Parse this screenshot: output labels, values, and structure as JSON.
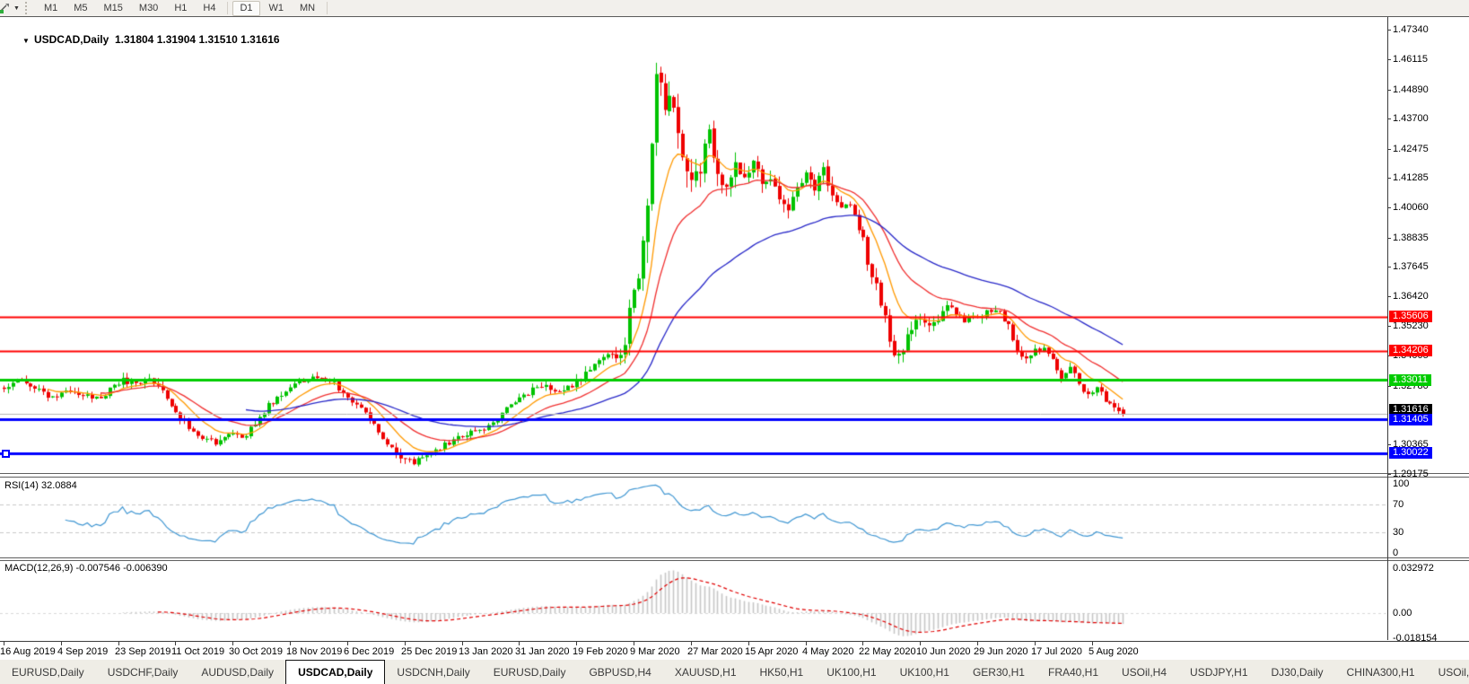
{
  "toolbar": {
    "timeframes": [
      "M1",
      "M5",
      "M15",
      "M30",
      "H1",
      "H4",
      "D1",
      "W1",
      "MN"
    ],
    "active_timeframe": "D1",
    "group_separators_after": [
      "H4",
      "MN"
    ]
  },
  "icons": {
    "dropdown_caret": "▼",
    "tab_scroll_left": "◄",
    "tab_scroll_right": "►"
  },
  "chart": {
    "title": {
      "symbol": "USDCAD,Daily",
      "open": "1.31804",
      "high": "1.31904",
      "low": "1.31510",
      "close": "1.31616"
    }
  },
  "rsi": {
    "label": "RSI(14) 32.0884"
  },
  "macd": {
    "label": "MACD(12,26,9) -0.007546 -0.006390"
  },
  "tabs": {
    "items": [
      "EURUSD,Daily",
      "USDCHF,Daily",
      "AUDUSD,Daily",
      "USDCAD,Daily",
      "USDCNH,Daily",
      "EURUSD,Daily",
      "GBPUSD,H4",
      "XAUUSD,H1",
      "HK50,H1",
      "UK100,H1",
      "UK100,H1",
      "GER30,H1",
      "FRA40,H1",
      "USOil,H4",
      "USDJPY,H1",
      "DJ30,Daily",
      "CHINA300,H1",
      "USOil,H1"
    ],
    "active_index": 3
  },
  "chart_data": {
    "type": "candlestick",
    "symbol": "USDCAD",
    "timeframe": "Daily",
    "bars_total": 255,
    "last_bar": {
      "open": 1.31804,
      "high": 1.31904,
      "low": 1.3151,
      "close": 1.31616
    },
    "y_range": {
      "top": 1.4734,
      "bottom": 1.29175
    },
    "price_axis_ticks": [
      {
        "label": "1.47340",
        "value": 1.4734
      },
      {
        "label": "1.46115",
        "value": 1.46115
      },
      {
        "label": "1.44890",
        "value": 1.4489
      },
      {
        "label": "1.43700",
        "value": 1.437
      },
      {
        "label": "1.42475",
        "value": 1.42475
      },
      {
        "label": "1.41285",
        "value": 1.41285
      },
      {
        "label": "1.40060",
        "value": 1.4006
      },
      {
        "label": "1.38835",
        "value": 1.38835
      },
      {
        "label": "1.37645",
        "value": 1.37645
      },
      {
        "label": "1.36420",
        "value": 1.3642
      },
      {
        "label": "1.35230",
        "value": 1.3523
      },
      {
        "label": "1.34005",
        "value": 1.34005
      },
      {
        "label": "1.32780",
        "value": 1.3278
      },
      {
        "label": "1.30365",
        "value": 1.30365
      },
      {
        "label": "1.29175",
        "value": 1.29175
      }
    ],
    "x_tick_dates": [
      "16 Aug 2019",
      "4 Sep 2019",
      "23 Sep 2019",
      "11 Oct 2019",
      "30 Oct 2019",
      "18 Nov 2019",
      "6 Dec 2019",
      "25 Dec 2019",
      "13 Jan 2020",
      "31 Jan 2020",
      "19 Feb 2020",
      "9 Mar 2020",
      "27 Mar 2020",
      "15 Apr 2020",
      "4 May 2020",
      "22 May 2020",
      "10 Jun 2020",
      "29 Jun 2020",
      "17 Jul 2020",
      "5 Aug 2020"
    ],
    "bars_per_tick": 13,
    "close_path_keypoints": [
      [
        0,
        1.3265
      ],
      [
        3,
        1.33
      ],
      [
        6,
        1.3282
      ],
      [
        9,
        1.3242
      ],
      [
        12,
        1.3228
      ],
      [
        15,
        1.3262
      ],
      [
        18,
        1.3242
      ],
      [
        21,
        1.3228
      ],
      [
        24,
        1.3258
      ],
      [
        27,
        1.33
      ],
      [
        30,
        1.329
      ],
      [
        33,
        1.331
      ],
      [
        36,
        1.326
      ],
      [
        39,
        1.318
      ],
      [
        42,
        1.3095
      ],
      [
        45,
        1.306
      ],
      [
        48,
        1.3048
      ],
      [
        51,
        1.308
      ],
      [
        54,
        1.3062
      ],
      [
        57,
        1.312
      ],
      [
        60,
        1.32
      ],
      [
        63,
        1.3245
      ],
      [
        66,
        1.329
      ],
      [
        69,
        1.3306
      ],
      [
        72,
        1.33
      ],
      [
        75,
        1.3285
      ],
      [
        78,
        1.324
      ],
      [
        81,
        1.318
      ],
      [
        84,
        1.312
      ],
      [
        87,
        1.303
      ],
      [
        90,
        1.2985
      ],
      [
        93,
        1.2962
      ],
      [
        96,
        1.2988
      ],
      [
        99,
        1.3025
      ],
      [
        102,
        1.3058
      ],
      [
        105,
        1.3078
      ],
      [
        108,
        1.3095
      ],
      [
        111,
        1.312
      ],
      [
        114,
        1.3185
      ],
      [
        117,
        1.323
      ],
      [
        120,
        1.3262
      ],
      [
        123,
        1.328
      ],
      [
        126,
        1.3252
      ],
      [
        129,
        1.3282
      ],
      [
        132,
        1.333
      ],
      [
        135,
        1.339
      ],
      [
        138,
        1.3425
      ],
      [
        140,
        1.338
      ],
      [
        142,
        1.356
      ],
      [
        144,
        1.371
      ],
      [
        145,
        1.386
      ],
      [
        146,
        1.406
      ],
      [
        147,
        1.426
      ],
      [
        148,
        1.4575
      ],
      [
        149,
        1.448
      ],
      [
        150,
        1.436
      ],
      [
        151,
        1.449
      ],
      [
        152,
        1.442
      ],
      [
        153,
        1.43
      ],
      [
        154,
        1.423
      ],
      [
        155,
        1.414
      ],
      [
        156,
        1.408
      ],
      [
        157,
        1.413
      ],
      [
        158,
        1.418
      ],
      [
        159,
        1.426
      ],
      [
        160,
        1.433
      ],
      [
        161,
        1.424
      ],
      [
        162,
        1.415
      ],
      [
        164,
        1.408
      ],
      [
        166,
        1.418
      ],
      [
        168,
        1.411
      ],
      [
        170,
        1.42
      ],
      [
        172,
        1.4105
      ],
      [
        174,
        1.4135
      ],
      [
        176,
        1.402
      ],
      [
        178,
        1.3985
      ],
      [
        180,
        1.4075
      ],
      [
        182,
        1.413
      ],
      [
        184,
        1.409
      ],
      [
        186,
        1.4155
      ],
      [
        188,
        1.405
      ],
      [
        190,
        1.399
      ],
      [
        192,
        1.402
      ],
      [
        194,
        1.3935
      ],
      [
        196,
        1.379
      ],
      [
        198,
        1.369
      ],
      [
        200,
        1.355
      ],
      [
        202,
        1.34
      ],
      [
        204,
        1.3435
      ],
      [
        206,
        1.3508
      ],
      [
        208,
        1.356
      ],
      [
        210,
        1.3528
      ],
      [
        212,
        1.3552
      ],
      [
        214,
        1.36
      ],
      [
        216,
        1.3572
      ],
      [
        218,
        1.3548
      ],
      [
        220,
        1.3578
      ],
      [
        222,
        1.356
      ],
      [
        224,
        1.3592
      ],
      [
        226,
        1.3572
      ],
      [
        228,
        1.3528
      ],
      [
        230,
        1.3415
      ],
      [
        232,
        1.3388
      ],
      [
        234,
        1.3418
      ],
      [
        236,
        1.3432
      ],
      [
        238,
        1.3378
      ],
      [
        240,
        1.3302
      ],
      [
        242,
        1.3348
      ],
      [
        244,
        1.3292
      ],
      [
        246,
        1.3235
      ],
      [
        248,
        1.3272
      ],
      [
        250,
        1.3222
      ],
      [
        252,
        1.3192
      ],
      [
        254,
        1.31616
      ]
    ],
    "volatility_keypoints": [
      [
        0,
        0.0024
      ],
      [
        40,
        0.0032
      ],
      [
        60,
        0.0024
      ],
      [
        88,
        0.0028
      ],
      [
        110,
        0.0022
      ],
      [
        135,
        0.0032
      ],
      [
        141,
        0.0075
      ],
      [
        146,
        0.0115
      ],
      [
        152,
        0.011
      ],
      [
        158,
        0.008
      ],
      [
        168,
        0.006
      ],
      [
        180,
        0.005
      ],
      [
        195,
        0.005
      ],
      [
        202,
        0.0052
      ],
      [
        214,
        0.0035
      ],
      [
        232,
        0.003
      ],
      [
        254,
        0.0024
      ]
    ],
    "moving_averages": [
      {
        "period": 10,
        "color": "#ff9900"
      },
      {
        "period": 22,
        "color": "#f03030"
      },
      {
        "period": 55,
        "color": "#2828c8"
      }
    ],
    "candle_up_color": "#00c200",
    "candle_down_color": "#ee0000",
    "horizontal_lines": [
      {
        "label": "1.35606",
        "value": 1.35606,
        "color": "#ff0000",
        "width": 2
      },
      {
        "label": "1.34206",
        "value": 1.34206,
        "color": "#ff0000",
        "width": 2
      },
      {
        "label": "1.33011",
        "value": 1.33011,
        "color": "#00cc00",
        "width": 3
      },
      {
        "label": "1.31405",
        "value": 1.31405,
        "color": "#0000ff",
        "width": 3
      },
      {
        "label": "1.30022",
        "value": 1.30022,
        "color": "#0000ff",
        "width": 3,
        "handle": true
      }
    ],
    "current_price": {
      "label": "1.31616",
      "value": 1.31616,
      "line_color": "#b4b4b4",
      "badge_bg": "#000000"
    },
    "rsi": {
      "period": 14,
      "value": 32.0884,
      "color": "#3f96d2",
      "levels": [
        70,
        30
      ],
      "axis_labels": [
        {
          "label": "100",
          "value": 100
        },
        {
          "label": "70",
          "value": 70
        },
        {
          "label": "30",
          "value": 30
        },
        {
          "label": "0",
          "value": 0
        }
      ]
    },
    "macd": {
      "fast": 12,
      "slow": 26,
      "signal": 9,
      "macd_value": -0.007546,
      "signal_value": -0.00639,
      "histogram_color": "#c6c6c6",
      "signal_color": "#e00000",
      "axis_labels": [
        {
          "label": "0.032972",
          "value": 0.032972
        },
        {
          "label": "0.00",
          "value": 0
        },
        {
          "label": "-0.018154",
          "value": -0.018154
        }
      ]
    }
  }
}
